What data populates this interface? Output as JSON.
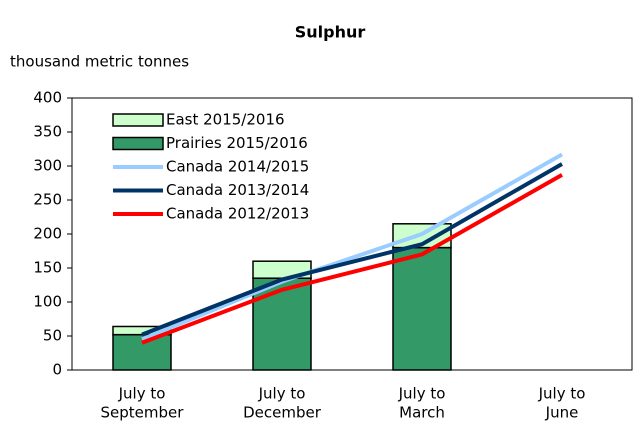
{
  "chart_data": {
    "type": "bar",
    "title": "Sulphur",
    "y_axis_label": "thousand metric tonnes",
    "categories": [
      [
        "July to",
        "September"
      ],
      [
        "July to",
        "December"
      ],
      [
        "July to",
        "March"
      ],
      [
        "July to",
        "June"
      ]
    ],
    "ylim": [
      0,
      400
    ],
    "yticks": [
      0,
      50,
      100,
      150,
      200,
      250,
      300,
      350,
      400
    ],
    "series": [
      {
        "name": "East 2015/2016",
        "type": "bar",
        "stack": "top",
        "color": "#ccffcc",
        "values": [
          12,
          25,
          35,
          null
        ]
      },
      {
        "name": "Prairies 2015/2016",
        "type": "bar",
        "stack": "bottom",
        "color": "#339966",
        "values": [
          52,
          135,
          180,
          null
        ]
      },
      {
        "name": "Canada 2014/2015",
        "type": "line",
        "color": "#99ccff",
        "values": [
          45,
          130,
          200,
          317
        ]
      },
      {
        "name": "Canada 2013/2014",
        "type": "line",
        "color": "#003366",
        "values": [
          52,
          133,
          185,
          303
        ]
      },
      {
        "name": "Canada 2012/2013",
        "type": "line",
        "color": "#ff0000",
        "values": [
          40,
          118,
          170,
          287
        ]
      }
    ]
  }
}
